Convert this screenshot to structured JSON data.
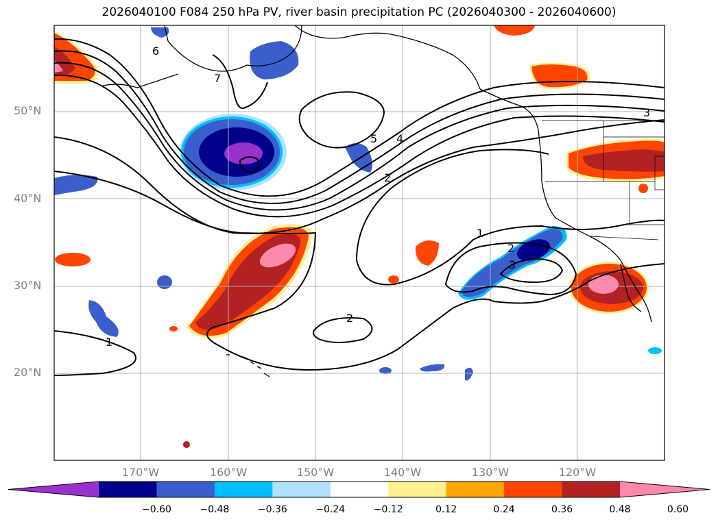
{
  "title": "2026040100 F084 250 hPa PV, river basin precipitation PC (2026040300 - 2026040600)",
  "lat_labels": [
    "50°N",
    "40°N",
    "30°N",
    "20°N"
  ],
  "lon_labels": [
    "170°W",
    "160°W",
    "150°W",
    "140°W",
    "130°W",
    "120°W"
  ],
  "contour_labels": [
    "6",
    "7",
    "5",
    "4",
    "3",
    "2",
    "1",
    "2",
    "3",
    "2",
    "1"
  ],
  "colorbar": {
    "ticks": [
      "−0.60",
      "−0.48",
      "−0.36",
      "−0.24",
      "−0.12",
      "0.12",
      "0.24",
      "0.36",
      "0.48",
      "0.60"
    ],
    "colors": [
      "#9932cc",
      "#00008b",
      "#3a5fcd",
      "#00bfff",
      "#b0e2ff",
      "#ffffff",
      "#fff08f",
      "#ffa500",
      "#ff4500",
      "#b22222",
      "#ff88aa"
    ]
  }
}
